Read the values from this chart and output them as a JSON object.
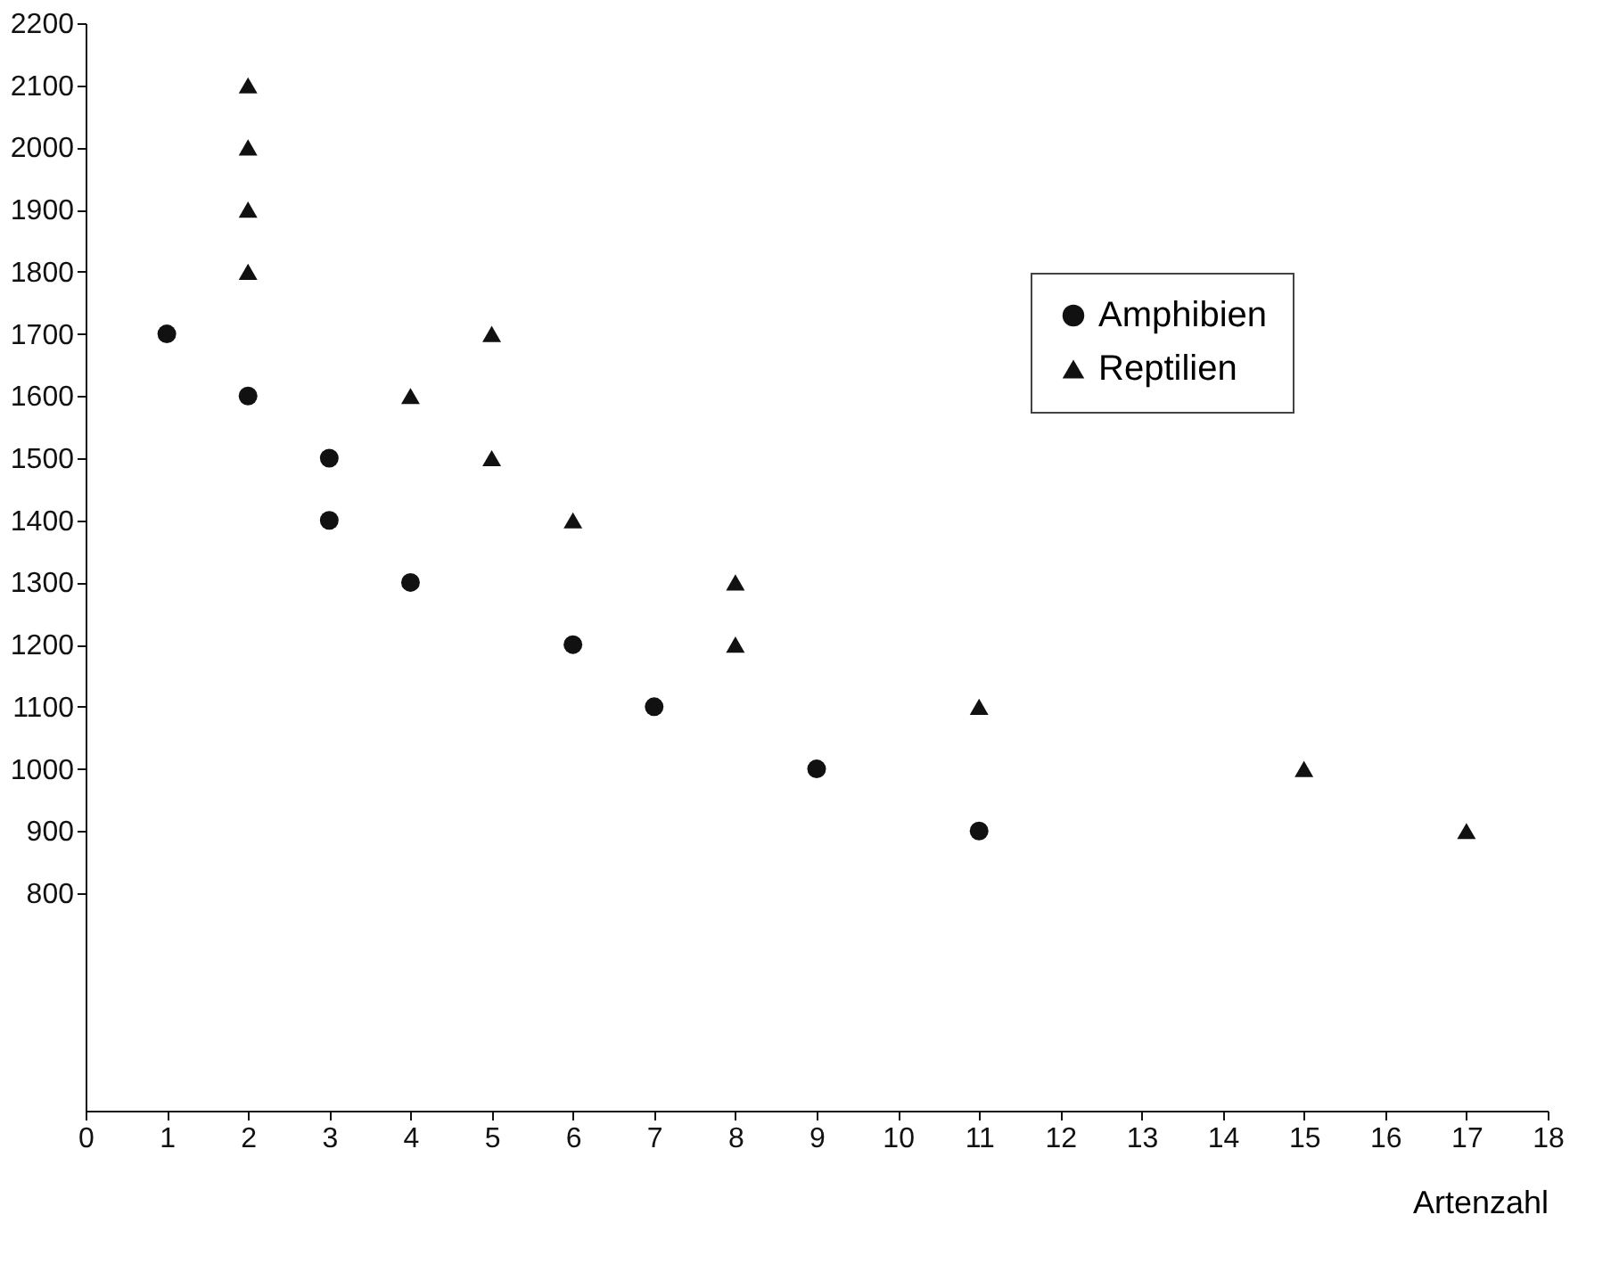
{
  "chart_data": {
    "type": "scatter",
    "xlabel": "Artenzahl",
    "xlim": [
      0,
      18
    ],
    "xticks": [
      0,
      1,
      2,
      3,
      4,
      5,
      6,
      7,
      8,
      9,
      10,
      11,
      12,
      13,
      14,
      15,
      16,
      17,
      18
    ],
    "ylim": [
      450,
      2200
    ],
    "yticks": [
      800,
      900,
      1000,
      1100,
      1200,
      1300,
      1400,
      1500,
      1600,
      1700,
      1800,
      1900,
      2000,
      2100,
      2200
    ],
    "grid": false,
    "legend": "top right",
    "series": [
      {
        "name": "Amphibien",
        "color": "#111111",
        "marker": "circle",
        "x": [
          1,
          2,
          3,
          3,
          4,
          6,
          7,
          9,
          11
        ],
        "values": [
          1700,
          1600,
          1500,
          1400,
          1300,
          1200,
          1100,
          1000,
          900
        ]
      },
      {
        "name": "Reptilien",
        "color": "#111111",
        "marker": "triangle",
        "x": [
          2,
          2,
          2,
          2,
          5,
          4,
          5,
          6,
          8,
          8,
          11,
          15,
          17
        ],
        "values": [
          2100,
          2000,
          1900,
          1800,
          1700,
          1600,
          1500,
          1400,
          1300,
          1200,
          1100,
          1000,
          900
        ]
      }
    ]
  }
}
